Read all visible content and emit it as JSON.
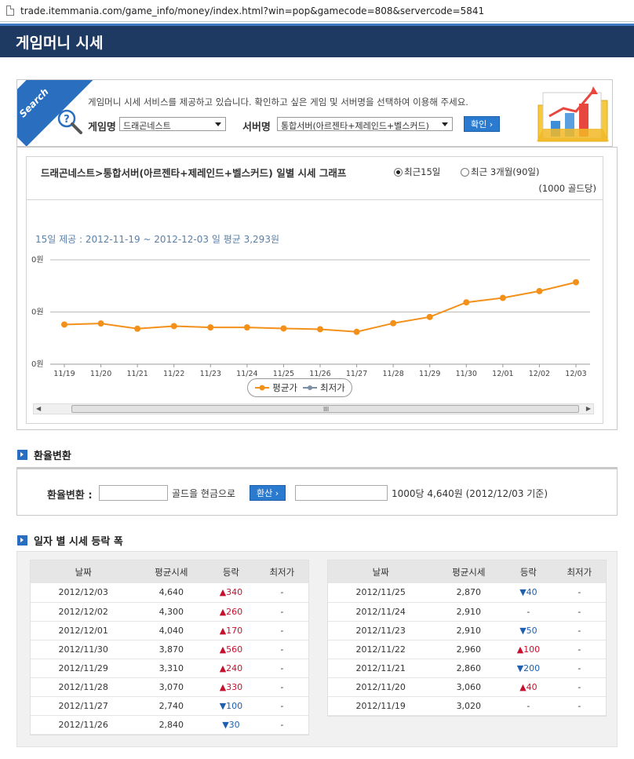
{
  "browser": {
    "url": "trade.itemmania.com/game_info/money/index.html?win=pop&gamecode=808&servercode=5841"
  },
  "page": {
    "title": "게임머니 시세"
  },
  "search": {
    "ribbon": "Search",
    "description": "게임머니 시세 서비스를 제공하고 있습니다. 확인하고 싶은 게임 및 서버명을 선택하여 이용해 주세요.",
    "game_label": "게임명",
    "game_value": "드래곤네스트",
    "server_label": "서버명",
    "server_value": "통합서버(아르젠타+제레인드+벨스커드)",
    "confirm_label": "확인"
  },
  "graph": {
    "title": "드래곤네스트>통합서버(아르젠타+제레인드+벨스커드) 일별 시세 그래프",
    "radio_15": "최근15일",
    "radio_90": "최근 3개월(90일)",
    "unit": "(1000 골드당)",
    "summary": "15일 제공 : 2012-11-19 ~ 2012-12-03  일 평균 3,293원",
    "legend_avg": "평균가",
    "legend_min": "최저가",
    "scroll_grip": "III"
  },
  "chart_data": {
    "type": "line",
    "x": [
      "11/19",
      "11/20",
      "11/21",
      "11/22",
      "11/23",
      "11/24",
      "11/25",
      "11/26",
      "11/27",
      "11/28",
      "11/29",
      "11/30",
      "12/01",
      "12/02",
      "12/03"
    ],
    "series": [
      {
        "name": "평균가",
        "values": [
          3020,
          3060,
          2860,
          2960,
          2910,
          2910,
          2870,
          2840,
          2740,
          3070,
          3310,
          3870,
          4040,
          4300,
          4640
        ]
      }
    ],
    "ytick_labels": [
      "0원",
      "0원",
      "0원"
    ],
    "ylim": [
      1500,
      5500
    ],
    "grid": true,
    "legend": "bottom-center"
  },
  "conversion": {
    "section_title": "환율변환",
    "label": "환율변환 :",
    "gold_text": "골드을 현금으로",
    "button": "환산",
    "rate_text": "1000당 4,640원 (2012/12/03 기준)"
  },
  "daily": {
    "section_title": "일자 별 시세 등락 폭",
    "headers": [
      "날짜",
      "평균시세",
      "등락",
      "최저가"
    ],
    "left_rows": [
      {
        "date": "2012/12/03",
        "avg": "4,640",
        "change": "▲340",
        "dir": "up",
        "min": "-"
      },
      {
        "date": "2012/12/02",
        "avg": "4,300",
        "change": "▲260",
        "dir": "up",
        "min": "-"
      },
      {
        "date": "2012/12/01",
        "avg": "4,040",
        "change": "▲170",
        "dir": "up",
        "min": "-"
      },
      {
        "date": "2012/11/30",
        "avg": "3,870",
        "change": "▲560",
        "dir": "up",
        "min": "-"
      },
      {
        "date": "2012/11/29",
        "avg": "3,310",
        "change": "▲240",
        "dir": "up",
        "min": "-"
      },
      {
        "date": "2012/11/28",
        "avg": "3,070",
        "change": "▲330",
        "dir": "up",
        "min": "-"
      },
      {
        "date": "2012/11/27",
        "avg": "2,740",
        "change": "▼100",
        "dir": "down",
        "min": "-"
      },
      {
        "date": "2012/11/26",
        "avg": "2,840",
        "change": "▼30",
        "dir": "down",
        "min": "-"
      }
    ],
    "right_rows": [
      {
        "date": "2012/11/25",
        "avg": "2,870",
        "change": "▼40",
        "dir": "down",
        "min": "-"
      },
      {
        "date": "2012/11/24",
        "avg": "2,910",
        "change": "-",
        "dir": "none",
        "min": "-"
      },
      {
        "date": "2012/11/23",
        "avg": "2,910",
        "change": "▼50",
        "dir": "down",
        "min": "-"
      },
      {
        "date": "2012/11/22",
        "avg": "2,960",
        "change": "▲100",
        "dir": "up",
        "min": "-"
      },
      {
        "date": "2012/11/21",
        "avg": "2,860",
        "change": "▼200",
        "dir": "down",
        "min": "-"
      },
      {
        "date": "2012/11/20",
        "avg": "3,060",
        "change": "▲40",
        "dir": "up",
        "min": "-"
      },
      {
        "date": "2012/11/19",
        "avg": "3,020",
        "change": "-",
        "dir": "none",
        "min": "-"
      }
    ]
  },
  "colors": {
    "title_bg": "#1f3a62",
    "accent": "#2a6ec0",
    "line": "#f39019",
    "up": "#c8102e",
    "down": "#1e5fb0"
  }
}
